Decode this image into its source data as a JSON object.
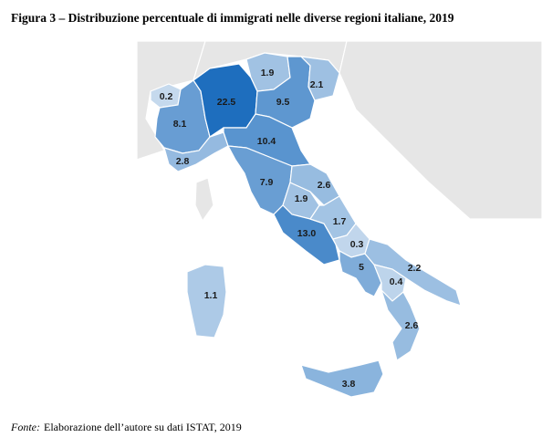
{
  "title": "Figura 3 – Distribuzione percentuale di immigrati nelle diverse regioni italiane, 2019",
  "regions": [
    {
      "value": 0.2
    },
    {
      "value": 8.1
    },
    {
      "value": 2.8
    },
    {
      "value": 22.5
    },
    {
      "value": 1.9
    },
    {
      "value": 9.5
    },
    {
      "value": 2.1
    },
    {
      "value": 10.4
    },
    {
      "value": 7.9
    },
    {
      "value": 1.9
    },
    {
      "value": 2.6
    },
    {
      "value": 13,
      "label": "13.0"
    },
    {
      "value": 1.7
    },
    {
      "value": 0.3
    },
    {
      "value": 5
    },
    {
      "value": 2.2
    },
    {
      "value": 0.4
    },
    {
      "value": 2.6
    },
    {
      "value": 3.8
    },
    {
      "value": 1.1
    }
  ],
  "source": {
    "label": "Fonte:",
    "text": "Elaborazione dell’autore su dati ISTAT, 2019"
  }
}
